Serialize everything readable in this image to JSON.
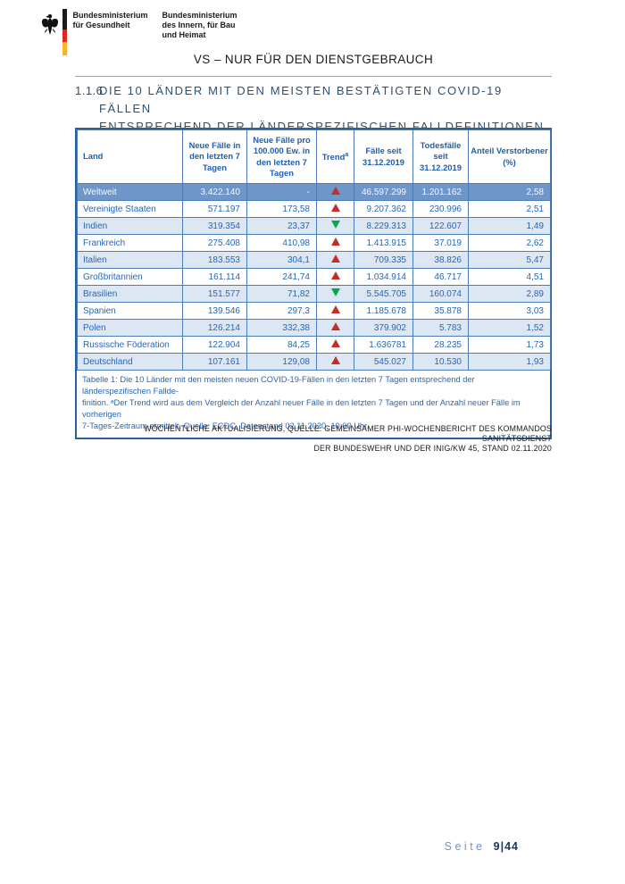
{
  "header": {
    "ministry1_lines": [
      "Bundesministerium",
      "für Gesundheit"
    ],
    "ministry2_lines": [
      "Bundesministerium",
      "des Innern, für Bau",
      "und Heimat"
    ],
    "classification": "VS – NUR FÜR DEN DIENSTGEBRAUCH"
  },
  "section": {
    "number": "1.1.6",
    "title_line1": "DIE 10 LÄNDER MIT DEN MEISTEN BESTÄTIGTEN COVID-19 FÄLLEN",
    "title_line2": "ENTSPRECHEND DER LÄNDERSPEZIFISCHEN FALLDEFINITIONEN"
  },
  "table": {
    "columns": [
      {
        "label": "Land"
      },
      {
        "label": "Neue Fälle in den letzten 7 Tagen"
      },
      {
        "label": "Neue Fälle pro 100.000 Ew. in den letzten 7 Tagen"
      },
      {
        "label": "Trend",
        "sup": "a"
      },
      {
        "label": "Fälle seit 31.12.2019"
      },
      {
        "label": "Todesfälle seit 31.12.2019"
      },
      {
        "label": "Anteil Verstorbener (%)"
      }
    ],
    "rows": [
      {
        "country": "Weltweit",
        "new_cases_7d": "3.422.140",
        "new_per_100k": "-",
        "trend": "up",
        "cases_total": "46.597.299",
        "deaths_total": "1.201.162",
        "death_share": "2,58"
      },
      {
        "country": "Vereinigte Staaten",
        "new_cases_7d": "571.197",
        "new_per_100k": "173,58",
        "trend": "up",
        "cases_total": "9.207.362",
        "deaths_total": "230.996",
        "death_share": "2,51"
      },
      {
        "country": "Indien",
        "new_cases_7d": "319.354",
        "new_per_100k": "23,37",
        "trend": "down",
        "cases_total": "8.229.313",
        "deaths_total": "122.607",
        "death_share": "1,49"
      },
      {
        "country": "Frankreich",
        "new_cases_7d": "275.408",
        "new_per_100k": "410,98",
        "trend": "up",
        "cases_total": "1.413.915",
        "deaths_total": "37.019",
        "death_share": "2,62"
      },
      {
        "country": "Italien",
        "new_cases_7d": "183.553",
        "new_per_100k": "304,1",
        "trend": "up",
        "cases_total": "709.335",
        "deaths_total": "38.826",
        "death_share": "5,47"
      },
      {
        "country": "Großbritannien",
        "new_cases_7d": "161.114",
        "new_per_100k": "241,74",
        "trend": "up",
        "cases_total": "1.034.914",
        "deaths_total": "46.717",
        "death_share": "4,51"
      },
      {
        "country": "Brasilien",
        "new_cases_7d": "151.577",
        "new_per_100k": "71,82",
        "trend": "down",
        "cases_total": "5.545.705",
        "deaths_total": "160.074",
        "death_share": "2,89"
      },
      {
        "country": "Spanien",
        "new_cases_7d": "139.546",
        "new_per_100k": "297,3",
        "trend": "up",
        "cases_total": "1.185.678",
        "deaths_total": "35.878",
        "death_share": "3,03"
      },
      {
        "country": "Polen",
        "new_cases_7d": "126.214",
        "new_per_100k": "332,38",
        "trend": "up",
        "cases_total": "379.902",
        "deaths_total": "5.783",
        "death_share": "1,52"
      },
      {
        "country": "Russische Föderation",
        "new_cases_7d": "122.904",
        "new_per_100k": "84,25",
        "trend": "up",
        "cases_total": "1.636781",
        "deaths_total": "28.235",
        "death_share": "1,73"
      },
      {
        "country": "Deutschland",
        "new_cases_7d": "107.161",
        "new_per_100k": "129,08",
        "trend": "up",
        "cases_total": "545.027",
        "deaths_total": "10.530",
        "death_share": "1,93"
      }
    ],
    "caption_lines": [
      "Tabelle 1: Die 10 Länder mit den meisten neuen COVID-19-Fällen in den letzten 7 Tagen entsprechend der länderspezifischen Fallde-",
      "finition. ᵃDer Trend wird aus dem Vergleich der Anzahl neuer Fälle in den letzten 7 Tagen und der Anzahl neuer Fälle im vorherigen",
      "7-Tages-Zeitraum ermittelt. Quelle: ECDC, Datenstand 02.11.2020, 10:00 Uhr."
    ]
  },
  "source_lines": [
    "WÖCHENTLICHE AKTUALISIERUNG, QUELLE: GEMEINSAMER PHI-WOCHENBERICHT DES KOMMANDOS SANITÄTSDIENST",
    "DER BUNDESWEHR UND DER INIG/KW 45, STAND 02.11.2020"
  ],
  "footer": {
    "page_label": "Seite",
    "page_number": "9|44"
  },
  "colors": {
    "table_border": "#2c5f9e",
    "grid_line": "#4b7db9",
    "header_text": "#1d5fb4",
    "data_text": "#2966b2",
    "world_row_bg": "#6e96c9",
    "alt_row_bg": "#dde7f3",
    "trend_up": "#c22f2a",
    "trend_down": "#0aa64c",
    "title_text": "#2d5070",
    "flag_black": "#1a1a1a",
    "flag_red": "#e2281e",
    "flag_gold": "#f7b52c"
  }
}
